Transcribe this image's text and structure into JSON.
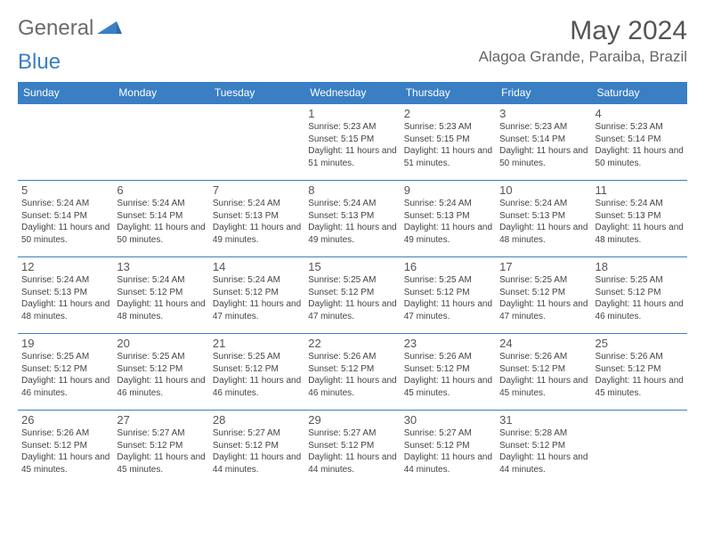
{
  "logo": {
    "text_gray": "General",
    "text_blue": "Blue"
  },
  "title": "May 2024",
  "location": "Alagoa Grande, Paraiba, Brazil",
  "colors": {
    "header_bg": "#3a7fc4",
    "header_text": "#ffffff",
    "border": "#3a7fc4",
    "title_color": "#555555",
    "location_color": "#666666",
    "body_text": "#444444",
    "logo_gray": "#6b6b6b",
    "logo_blue": "#3a7fc4",
    "page_bg": "#ffffff"
  },
  "weekdays": [
    "Sunday",
    "Monday",
    "Tuesday",
    "Wednesday",
    "Thursday",
    "Friday",
    "Saturday"
  ],
  "weeks": [
    [
      null,
      null,
      null,
      {
        "n": "1",
        "sr": "5:23 AM",
        "ss": "5:15 PM",
        "dl": "11 hours and 51 minutes."
      },
      {
        "n": "2",
        "sr": "5:23 AM",
        "ss": "5:15 PM",
        "dl": "11 hours and 51 minutes."
      },
      {
        "n": "3",
        "sr": "5:23 AM",
        "ss": "5:14 PM",
        "dl": "11 hours and 50 minutes."
      },
      {
        "n": "4",
        "sr": "5:23 AM",
        "ss": "5:14 PM",
        "dl": "11 hours and 50 minutes."
      }
    ],
    [
      {
        "n": "5",
        "sr": "5:24 AM",
        "ss": "5:14 PM",
        "dl": "11 hours and 50 minutes."
      },
      {
        "n": "6",
        "sr": "5:24 AM",
        "ss": "5:14 PM",
        "dl": "11 hours and 50 minutes."
      },
      {
        "n": "7",
        "sr": "5:24 AM",
        "ss": "5:13 PM",
        "dl": "11 hours and 49 minutes."
      },
      {
        "n": "8",
        "sr": "5:24 AM",
        "ss": "5:13 PM",
        "dl": "11 hours and 49 minutes."
      },
      {
        "n": "9",
        "sr": "5:24 AM",
        "ss": "5:13 PM",
        "dl": "11 hours and 49 minutes."
      },
      {
        "n": "10",
        "sr": "5:24 AM",
        "ss": "5:13 PM",
        "dl": "11 hours and 48 minutes."
      },
      {
        "n": "11",
        "sr": "5:24 AM",
        "ss": "5:13 PM",
        "dl": "11 hours and 48 minutes."
      }
    ],
    [
      {
        "n": "12",
        "sr": "5:24 AM",
        "ss": "5:13 PM",
        "dl": "11 hours and 48 minutes."
      },
      {
        "n": "13",
        "sr": "5:24 AM",
        "ss": "5:12 PM",
        "dl": "11 hours and 48 minutes."
      },
      {
        "n": "14",
        "sr": "5:24 AM",
        "ss": "5:12 PM",
        "dl": "11 hours and 47 minutes."
      },
      {
        "n": "15",
        "sr": "5:25 AM",
        "ss": "5:12 PM",
        "dl": "11 hours and 47 minutes."
      },
      {
        "n": "16",
        "sr": "5:25 AM",
        "ss": "5:12 PM",
        "dl": "11 hours and 47 minutes."
      },
      {
        "n": "17",
        "sr": "5:25 AM",
        "ss": "5:12 PM",
        "dl": "11 hours and 47 minutes."
      },
      {
        "n": "18",
        "sr": "5:25 AM",
        "ss": "5:12 PM",
        "dl": "11 hours and 46 minutes."
      }
    ],
    [
      {
        "n": "19",
        "sr": "5:25 AM",
        "ss": "5:12 PM",
        "dl": "11 hours and 46 minutes."
      },
      {
        "n": "20",
        "sr": "5:25 AM",
        "ss": "5:12 PM",
        "dl": "11 hours and 46 minutes."
      },
      {
        "n": "21",
        "sr": "5:25 AM",
        "ss": "5:12 PM",
        "dl": "11 hours and 46 minutes."
      },
      {
        "n": "22",
        "sr": "5:26 AM",
        "ss": "5:12 PM",
        "dl": "11 hours and 46 minutes."
      },
      {
        "n": "23",
        "sr": "5:26 AM",
        "ss": "5:12 PM",
        "dl": "11 hours and 45 minutes."
      },
      {
        "n": "24",
        "sr": "5:26 AM",
        "ss": "5:12 PM",
        "dl": "11 hours and 45 minutes."
      },
      {
        "n": "25",
        "sr": "5:26 AM",
        "ss": "5:12 PM",
        "dl": "11 hours and 45 minutes."
      }
    ],
    [
      {
        "n": "26",
        "sr": "5:26 AM",
        "ss": "5:12 PM",
        "dl": "11 hours and 45 minutes."
      },
      {
        "n": "27",
        "sr": "5:27 AM",
        "ss": "5:12 PM",
        "dl": "11 hours and 45 minutes."
      },
      {
        "n": "28",
        "sr": "5:27 AM",
        "ss": "5:12 PM",
        "dl": "11 hours and 44 minutes."
      },
      {
        "n": "29",
        "sr": "5:27 AM",
        "ss": "5:12 PM",
        "dl": "11 hours and 44 minutes."
      },
      {
        "n": "30",
        "sr": "5:27 AM",
        "ss": "5:12 PM",
        "dl": "11 hours and 44 minutes."
      },
      {
        "n": "31",
        "sr": "5:28 AM",
        "ss": "5:12 PM",
        "dl": "11 hours and 44 minutes."
      },
      null
    ]
  ],
  "labels": {
    "sunrise": "Sunrise: ",
    "sunset": "Sunset: ",
    "daylight": "Daylight: "
  }
}
